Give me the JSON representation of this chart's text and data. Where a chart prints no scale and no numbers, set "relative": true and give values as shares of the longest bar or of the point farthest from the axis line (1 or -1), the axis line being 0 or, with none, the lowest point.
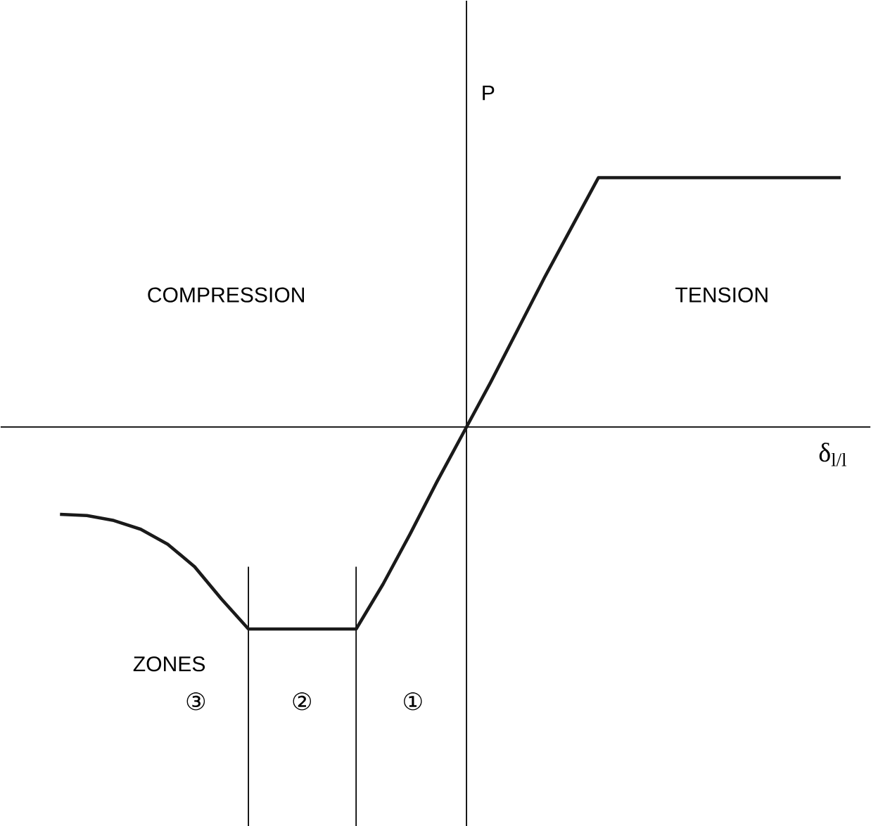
{
  "chart_data": {
    "type": "line",
    "relative": true,
    "xlabel": "δ$_{l/l}$",
    "ylabel": "P",
    "categories": [
      null,
      null,
      null,
      null,
      null,
      null,
      null,
      null,
      null,
      null,
      null,
      null,
      null,
      null,
      null,
      null,
      null,
      null,
      null,
      null,
      null,
      null,
      null,
      null,
      null,
      null,
      null,
      null,
      null,
      null
    ],
    "series": [
      {
        "color": "#1a1a1a",
        "values": [
          -0.35,
          -0.355,
          -0.375,
          -0.41,
          -0.47,
          -0.56,
          -0.69,
          -0.81,
          -0.81,
          -0.81,
          -0.81,
          -0.81,
          -0.63,
          -0.43,
          -0.22,
          -0.02,
          0.18,
          0.39,
          0.6,
          0.8,
          1,
          1,
          1,
          1,
          1,
          1,
          1,
          1,
          1,
          1
        ]
      }
    ],
    "annotations": [
      "COMPRESSION",
      "TENSION",
      "ZONES",
      "③",
      "②",
      "①"
    ],
    "marker": "none",
    "line_style": "solid"
  }
}
